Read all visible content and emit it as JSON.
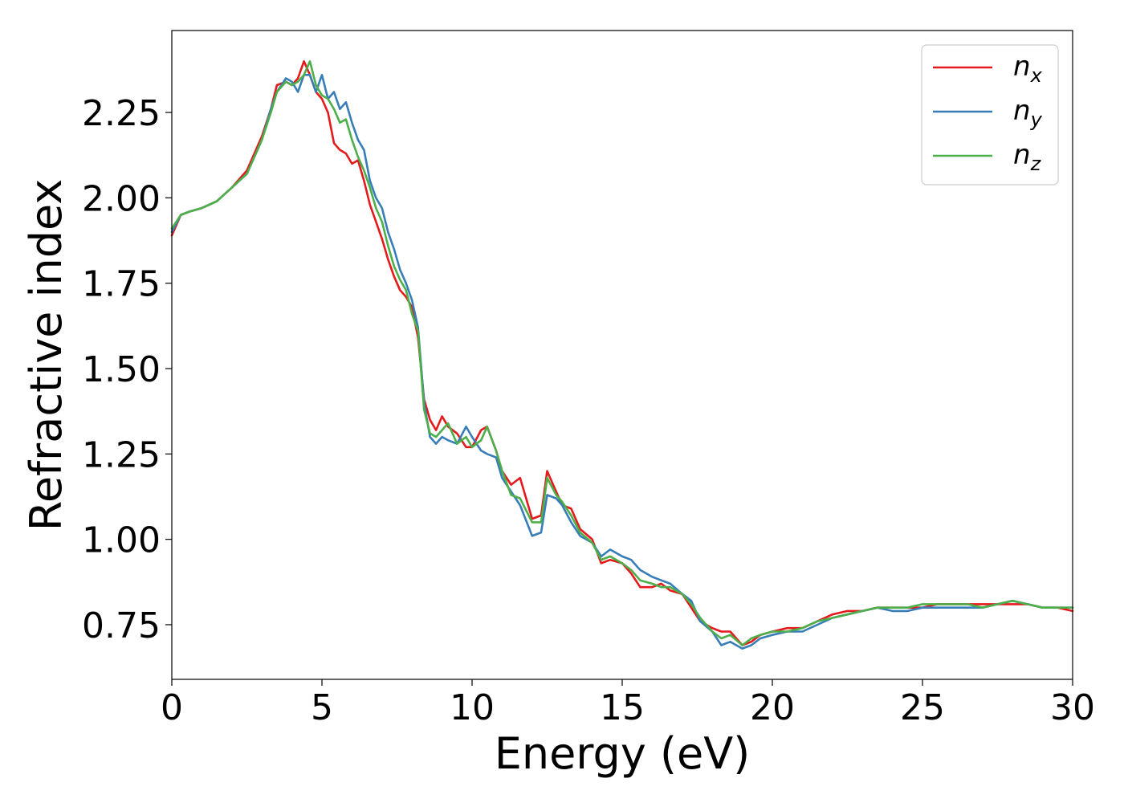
{
  "chart_data": {
    "type": "line",
    "xlabel": "Energy (eV)",
    "ylabel": "Refractive index",
    "xlim": [
      0,
      30
    ],
    "ylim": [
      0.59,
      2.49
    ],
    "xticks": [
      0,
      5,
      10,
      15,
      20,
      25,
      30
    ],
    "xtick_labels": [
      "0",
      "5",
      "10",
      "15",
      "20",
      "25",
      "30"
    ],
    "yticks": [
      0.75,
      1.0,
      1.25,
      1.5,
      1.75,
      2.0,
      2.25
    ],
    "ytick_labels": [
      "0.75",
      "1.00",
      "1.25",
      "1.50",
      "1.75",
      "2.00",
      "2.25"
    ],
    "grid": false,
    "legend_position": "top-right",
    "series": [
      {
        "name": "n",
        "subscript": "x",
        "color": "#e41a1c",
        "x": [
          0,
          0.3,
          0.6,
          1.0,
          1.5,
          2.0,
          2.5,
          3.0,
          3.3,
          3.5,
          3.8,
          4.0,
          4.2,
          4.4,
          4.6,
          4.8,
          5.0,
          5.2,
          5.4,
          5.6,
          5.8,
          6.0,
          6.2,
          6.4,
          6.6,
          6.8,
          7.0,
          7.2,
          7.4,
          7.6,
          7.8,
          8.0,
          8.2,
          8.4,
          8.6,
          8.8,
          9.0,
          9.2,
          9.5,
          9.8,
          10.0,
          10.3,
          10.5,
          10.8,
          11.0,
          11.3,
          11.6,
          12.0,
          12.3,
          12.5,
          12.8,
          13.0,
          13.3,
          13.6,
          14.0,
          14.3,
          14.6,
          15.0,
          15.3,
          15.6,
          16.0,
          16.3,
          16.6,
          17.0,
          17.3,
          17.6,
          18.0,
          18.3,
          18.6,
          19.0,
          19.3,
          19.6,
          20.0,
          20.5,
          21.0,
          21.5,
          22.0,
          22.5,
          23.0,
          23.5,
          24.0,
          24.5,
          25.0,
          25.5,
          26.0,
          26.5,
          27.0,
          27.5,
          28.0,
          28.5,
          29.0,
          29.5,
          30.0
        ],
        "values": [
          1.89,
          1.95,
          1.96,
          1.97,
          1.99,
          2.03,
          2.08,
          2.18,
          2.26,
          2.33,
          2.34,
          2.33,
          2.35,
          2.4,
          2.36,
          2.31,
          2.29,
          2.25,
          2.16,
          2.14,
          2.13,
          2.1,
          2.11,
          2.05,
          1.98,
          1.93,
          1.88,
          1.82,
          1.77,
          1.73,
          1.71,
          1.68,
          1.59,
          1.41,
          1.35,
          1.32,
          1.36,
          1.33,
          1.31,
          1.27,
          1.27,
          1.32,
          1.33,
          1.26,
          1.2,
          1.16,
          1.18,
          1.06,
          1.07,
          1.2,
          1.14,
          1.1,
          1.09,
          1.03,
          1.0,
          0.93,
          0.94,
          0.93,
          0.9,
          0.86,
          0.86,
          0.87,
          0.85,
          0.84,
          0.8,
          0.76,
          0.74,
          0.73,
          0.73,
          0.69,
          0.7,
          0.72,
          0.73,
          0.74,
          0.74,
          0.76,
          0.78,
          0.79,
          0.79,
          0.8,
          0.8,
          0.8,
          0.8,
          0.81,
          0.81,
          0.81,
          0.81,
          0.81,
          0.81,
          0.81,
          0.8,
          0.8,
          0.79
        ]
      },
      {
        "name": "n",
        "subscript": "y",
        "color": "#377eb8",
        "x": [
          0,
          0.3,
          0.6,
          1.0,
          1.5,
          2.0,
          2.5,
          3.0,
          3.3,
          3.5,
          3.8,
          4.0,
          4.2,
          4.4,
          4.6,
          4.8,
          5.0,
          5.2,
          5.4,
          5.6,
          5.8,
          6.0,
          6.2,
          6.4,
          6.6,
          6.8,
          7.0,
          7.2,
          7.4,
          7.6,
          7.8,
          8.0,
          8.2,
          8.4,
          8.6,
          8.8,
          9.0,
          9.2,
          9.5,
          9.8,
          10.0,
          10.3,
          10.5,
          10.8,
          11.0,
          11.3,
          11.6,
          12.0,
          12.3,
          12.5,
          12.8,
          13.0,
          13.3,
          13.6,
          14.0,
          14.3,
          14.6,
          15.0,
          15.3,
          15.6,
          16.0,
          16.3,
          16.6,
          17.0,
          17.3,
          17.6,
          18.0,
          18.3,
          18.6,
          19.0,
          19.3,
          19.6,
          20.0,
          20.5,
          21.0,
          21.5,
          22.0,
          22.5,
          23.0,
          23.5,
          24.0,
          24.5,
          25.0,
          25.5,
          26.0,
          26.5,
          27.0,
          27.5,
          28.0,
          28.5,
          29.0,
          29.5,
          30.0
        ],
        "values": [
          1.9,
          1.95,
          1.96,
          1.97,
          1.99,
          2.03,
          2.07,
          2.17,
          2.26,
          2.31,
          2.35,
          2.34,
          2.31,
          2.36,
          2.36,
          2.31,
          2.36,
          2.29,
          2.31,
          2.26,
          2.28,
          2.22,
          2.17,
          2.14,
          2.05,
          2.0,
          1.97,
          1.9,
          1.85,
          1.79,
          1.75,
          1.7,
          1.62,
          1.4,
          1.3,
          1.28,
          1.3,
          1.29,
          1.28,
          1.33,
          1.3,
          1.26,
          1.25,
          1.24,
          1.18,
          1.14,
          1.1,
          1.01,
          1.02,
          1.13,
          1.12,
          1.1,
          1.05,
          1.01,
          0.99,
          0.95,
          0.97,
          0.95,
          0.94,
          0.91,
          0.89,
          0.88,
          0.87,
          0.84,
          0.82,
          0.76,
          0.73,
          0.69,
          0.7,
          0.68,
          0.69,
          0.71,
          0.72,
          0.73,
          0.73,
          0.75,
          0.77,
          0.78,
          0.79,
          0.8,
          0.79,
          0.79,
          0.8,
          0.8,
          0.8,
          0.8,
          0.8,
          0.81,
          0.82,
          0.81,
          0.8,
          0.8,
          0.8
        ]
      },
      {
        "name": "n",
        "subscript": "z",
        "color": "#4daf4a",
        "x": [
          0,
          0.3,
          0.6,
          1.0,
          1.5,
          2.0,
          2.5,
          3.0,
          3.3,
          3.5,
          3.8,
          4.0,
          4.2,
          4.4,
          4.6,
          4.8,
          5.0,
          5.2,
          5.4,
          5.6,
          5.8,
          6.0,
          6.2,
          6.4,
          6.6,
          6.8,
          7.0,
          7.2,
          7.4,
          7.6,
          7.8,
          8.0,
          8.2,
          8.4,
          8.6,
          8.8,
          9.0,
          9.2,
          9.5,
          9.8,
          10.0,
          10.3,
          10.5,
          10.8,
          11.0,
          11.3,
          11.6,
          12.0,
          12.3,
          12.5,
          12.8,
          13.0,
          13.3,
          13.6,
          14.0,
          14.3,
          14.6,
          15.0,
          15.3,
          15.6,
          16.0,
          16.3,
          16.6,
          17.0,
          17.3,
          17.6,
          18.0,
          18.3,
          18.6,
          19.0,
          19.3,
          19.6,
          20.0,
          20.5,
          21.0,
          21.5,
          22.0,
          22.5,
          23.0,
          23.5,
          24.0,
          24.5,
          25.0,
          25.5,
          26.0,
          26.5,
          27.0,
          27.5,
          28.0,
          28.5,
          29.0,
          29.5,
          30.0
        ],
        "values": [
          1.91,
          1.95,
          1.96,
          1.97,
          1.99,
          2.03,
          2.07,
          2.17,
          2.25,
          2.31,
          2.34,
          2.33,
          2.34,
          2.36,
          2.4,
          2.33,
          2.3,
          2.29,
          2.26,
          2.22,
          2.23,
          2.17,
          2.12,
          2.08,
          2.03,
          1.97,
          1.93,
          1.86,
          1.8,
          1.76,
          1.73,
          1.66,
          1.61,
          1.38,
          1.31,
          1.3,
          1.32,
          1.34,
          1.28,
          1.3,
          1.27,
          1.29,
          1.33,
          1.26,
          1.2,
          1.13,
          1.12,
          1.05,
          1.05,
          1.18,
          1.13,
          1.11,
          1.07,
          1.02,
          0.99,
          0.94,
          0.95,
          0.93,
          0.91,
          0.88,
          0.87,
          0.86,
          0.86,
          0.84,
          0.81,
          0.77,
          0.73,
          0.71,
          0.72,
          0.69,
          0.71,
          0.72,
          0.73,
          0.73,
          0.74,
          0.76,
          0.77,
          0.78,
          0.79,
          0.8,
          0.8,
          0.8,
          0.81,
          0.81,
          0.81,
          0.81,
          0.8,
          0.81,
          0.82,
          0.81,
          0.8,
          0.8,
          0.8
        ]
      }
    ]
  }
}
